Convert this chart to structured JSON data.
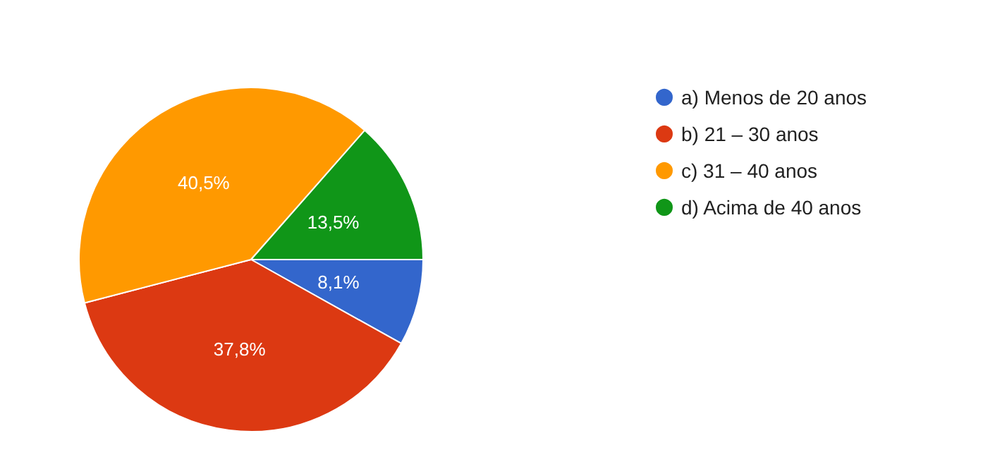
{
  "chart_data": {
    "type": "pie",
    "categories": [
      "a) Menos de 20 anos",
      "b) 21 – 30 anos",
      "c) 31 – 40 anos",
      "d) Acima de 40 anos"
    ],
    "values": [
      8.1,
      37.8,
      40.5,
      13.5
    ],
    "colors": [
      "#3366cc",
      "#dc3912",
      "#ff9900",
      "#109618"
    ],
    "value_labels": [
      "8,1%",
      "37,8%",
      "40,5%",
      "13,5%"
    ],
    "legend": "top right"
  }
}
